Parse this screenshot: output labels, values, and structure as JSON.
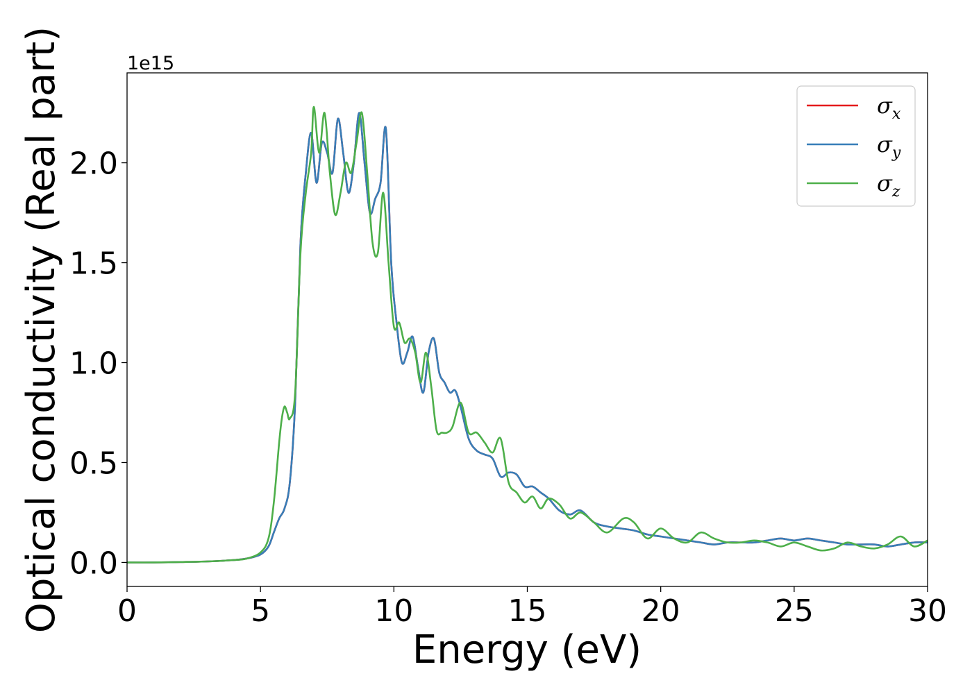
{
  "chart_data": {
    "type": "line",
    "title": "",
    "xlabel": "Energy (eV)",
    "ylabel": "Optical conductivity (Real part)",
    "y_offset_label": "1e15",
    "xlim": [
      0,
      30
    ],
    "ylim": [
      -0.12,
      2.45
    ],
    "xticks": [
      0,
      5,
      10,
      15,
      20,
      25,
      30
    ],
    "xtick_labels": [
      "0",
      "5",
      "10",
      "15",
      "20",
      "25",
      "30"
    ],
    "yticks": [
      0.0,
      0.5,
      1.0,
      1.5,
      2.0
    ],
    "ytick_labels": [
      "0.0",
      "0.5",
      "1.0",
      "1.5",
      "2.0"
    ],
    "grid": false,
    "legend_position": "top-right",
    "series": [
      {
        "name": "σx",
        "symbol": "σ",
        "subscript": "x",
        "color": "#e41a1c",
        "x": [
          0,
          1,
          2,
          3,
          4,
          4.5,
          5,
          5.3,
          5.5,
          5.7,
          5.9,
          6.1,
          6.3,
          6.5,
          6.7,
          6.9,
          7.1,
          7.3,
          7.5,
          7.7,
          7.9,
          8.1,
          8.3,
          8.5,
          8.7,
          8.9,
          9.1,
          9.3,
          9.5,
          9.7,
          9.9,
          10.1,
          10.3,
          10.5,
          10.7,
          10.9,
          11.1,
          11.3,
          11.5,
          11.7,
          11.9,
          12.1,
          12.3,
          12.5,
          12.8,
          13.1,
          13.4,
          13.7,
          14.0,
          14.3,
          14.6,
          14.9,
          15.2,
          15.5,
          15.8,
          16.2,
          16.6,
          17.0,
          17.5,
          18.0,
          18.5,
          19.0,
          19.5,
          20.0,
          20.5,
          21.0,
          21.5,
          22.0,
          22.5,
          23.0,
          23.5,
          24.0,
          24.5,
          25.0,
          25.5,
          26.0,
          26.5,
          27.0,
          27.5,
          28.0,
          28.5,
          29.0,
          29.5,
          30.0
        ],
        "y": [
          0.0,
          0.0,
          0.002,
          0.005,
          0.012,
          0.02,
          0.04,
          0.08,
          0.15,
          0.22,
          0.27,
          0.4,
          0.8,
          1.6,
          1.95,
          2.15,
          1.9,
          2.1,
          2.05,
          1.95,
          2.22,
          2.05,
          1.85,
          2.0,
          2.25,
          2.0,
          1.75,
          1.82,
          1.9,
          2.17,
          1.5,
          1.2,
          1.0,
          1.05,
          1.13,
          0.98,
          0.85,
          1.05,
          1.12,
          0.95,
          0.9,
          0.85,
          0.86,
          0.78,
          0.62,
          0.56,
          0.54,
          0.52,
          0.43,
          0.45,
          0.44,
          0.38,
          0.38,
          0.35,
          0.32,
          0.26,
          0.24,
          0.26,
          0.2,
          0.18,
          0.17,
          0.16,
          0.14,
          0.13,
          0.12,
          0.11,
          0.1,
          0.09,
          0.1,
          0.1,
          0.1,
          0.11,
          0.12,
          0.11,
          0.12,
          0.11,
          0.1,
          0.09,
          0.09,
          0.09,
          0.08,
          0.09,
          0.1,
          0.1
        ]
      },
      {
        "name": "σy",
        "symbol": "σ",
        "subscript": "y",
        "color": "#377eb8",
        "x": [
          0,
          1,
          2,
          3,
          4,
          4.5,
          5,
          5.3,
          5.5,
          5.7,
          5.9,
          6.1,
          6.3,
          6.5,
          6.7,
          6.9,
          7.1,
          7.3,
          7.5,
          7.7,
          7.9,
          8.1,
          8.3,
          8.5,
          8.7,
          8.9,
          9.1,
          9.3,
          9.5,
          9.7,
          9.9,
          10.1,
          10.3,
          10.5,
          10.7,
          10.9,
          11.1,
          11.3,
          11.5,
          11.7,
          11.9,
          12.1,
          12.3,
          12.5,
          12.8,
          13.1,
          13.4,
          13.7,
          14.0,
          14.3,
          14.6,
          14.9,
          15.2,
          15.5,
          15.8,
          16.2,
          16.6,
          17.0,
          17.5,
          18.0,
          18.5,
          19.0,
          19.5,
          20.0,
          20.5,
          21.0,
          21.5,
          22.0,
          22.5,
          23.0,
          23.5,
          24.0,
          24.5,
          25.0,
          25.5,
          26.0,
          26.5,
          27.0,
          27.5,
          28.0,
          28.5,
          29.0,
          29.5,
          30.0
        ],
        "y": [
          0.0,
          0.0,
          0.002,
          0.005,
          0.012,
          0.02,
          0.04,
          0.08,
          0.15,
          0.22,
          0.27,
          0.4,
          0.8,
          1.6,
          1.95,
          2.15,
          1.9,
          2.1,
          2.05,
          1.95,
          2.22,
          2.05,
          1.85,
          2.0,
          2.25,
          2.0,
          1.75,
          1.82,
          1.9,
          2.17,
          1.5,
          1.2,
          1.0,
          1.05,
          1.13,
          0.98,
          0.85,
          1.05,
          1.12,
          0.95,
          0.9,
          0.85,
          0.86,
          0.78,
          0.62,
          0.56,
          0.54,
          0.52,
          0.43,
          0.45,
          0.44,
          0.38,
          0.38,
          0.35,
          0.32,
          0.26,
          0.24,
          0.26,
          0.2,
          0.18,
          0.17,
          0.16,
          0.14,
          0.13,
          0.12,
          0.11,
          0.1,
          0.09,
          0.1,
          0.1,
          0.1,
          0.11,
          0.12,
          0.11,
          0.12,
          0.11,
          0.1,
          0.09,
          0.09,
          0.09,
          0.08,
          0.09,
          0.1,
          0.1
        ]
      },
      {
        "name": "σz",
        "symbol": "σ",
        "subscript": "z",
        "color": "#4daf4a",
        "x": [
          0,
          1,
          2,
          3,
          4,
          4.5,
          5,
          5.3,
          5.5,
          5.7,
          5.8,
          5.9,
          6.0,
          6.1,
          6.3,
          6.5,
          6.7,
          6.9,
          7.0,
          7.2,
          7.4,
          7.6,
          7.8,
          8.0,
          8.2,
          8.4,
          8.6,
          8.8,
          9.0,
          9.2,
          9.4,
          9.6,
          9.8,
          10.0,
          10.2,
          10.4,
          10.6,
          10.8,
          11.0,
          11.2,
          11.4,
          11.6,
          11.8,
          12.0,
          12.2,
          12.5,
          12.8,
          13.1,
          13.4,
          13.7,
          14.0,
          14.3,
          14.6,
          14.9,
          15.2,
          15.5,
          15.8,
          16.2,
          16.6,
          17.0,
          17.5,
          18.0,
          18.6,
          19.0,
          19.5,
          20.0,
          20.5,
          21.0,
          21.5,
          22.0,
          22.5,
          23.0,
          23.5,
          24.0,
          24.5,
          25.0,
          25.5,
          26.0,
          26.5,
          27.0,
          27.5,
          28.0,
          28.5,
          29.0,
          29.5,
          30.0
        ],
        "y": [
          0.0,
          0.0,
          0.002,
          0.005,
          0.012,
          0.02,
          0.05,
          0.12,
          0.3,
          0.6,
          0.72,
          0.78,
          0.75,
          0.72,
          0.85,
          1.55,
          1.85,
          2.05,
          2.28,
          2.05,
          2.25,
          1.95,
          1.74,
          1.85,
          2.0,
          1.95,
          2.1,
          2.25,
          1.95,
          1.6,
          1.55,
          1.85,
          1.5,
          1.18,
          1.2,
          1.1,
          1.12,
          1.05,
          0.9,
          1.05,
          0.88,
          0.66,
          0.65,
          0.65,
          0.68,
          0.8,
          0.65,
          0.65,
          0.6,
          0.55,
          0.62,
          0.4,
          0.35,
          0.3,
          0.33,
          0.27,
          0.32,
          0.29,
          0.22,
          0.25,
          0.2,
          0.15,
          0.22,
          0.2,
          0.12,
          0.17,
          0.12,
          0.1,
          0.15,
          0.12,
          0.1,
          0.1,
          0.11,
          0.1,
          0.08,
          0.1,
          0.08,
          0.06,
          0.07,
          0.1,
          0.08,
          0.07,
          0.09,
          0.13,
          0.08,
          0.11
        ]
      }
    ]
  }
}
